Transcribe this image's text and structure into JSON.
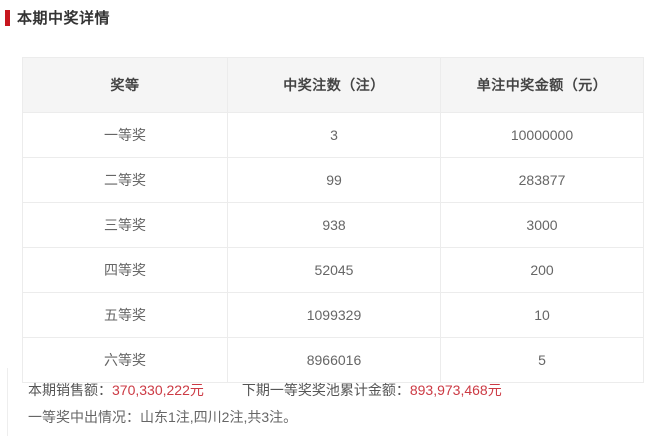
{
  "page": {
    "title": "本期中奖详情"
  },
  "colors": {
    "accent_red": "#c7161e",
    "highlight_red": "#cc3a44",
    "header_bg": "#f5f5f5",
    "border": "#ececec",
    "title_text": "#333333"
  },
  "table": {
    "columns": [
      "奖等",
      "中奖注数（注）",
      "单注中奖金额（元）"
    ],
    "rows": [
      {
        "tier": "一等奖",
        "count": "3",
        "amount": "10000000"
      },
      {
        "tier": "二等奖",
        "count": "99",
        "amount": "283877"
      },
      {
        "tier": "三等奖",
        "count": "938",
        "amount": "3000"
      },
      {
        "tier": "四等奖",
        "count": "52045",
        "amount": "200"
      },
      {
        "tier": "五等奖",
        "count": "1099329",
        "amount": "10"
      },
      {
        "tier": "六等奖",
        "count": "8966016",
        "amount": "5"
      }
    ]
  },
  "footer": {
    "sales_label": "本期销售额：",
    "sales_value": "370,330,222元",
    "pool_label": "下期一等奖奖池累计金额：",
    "pool_value": "893,973,468元",
    "first_prize_detail": "一等奖中出情况：山东1注,四川2注,共3注。"
  }
}
